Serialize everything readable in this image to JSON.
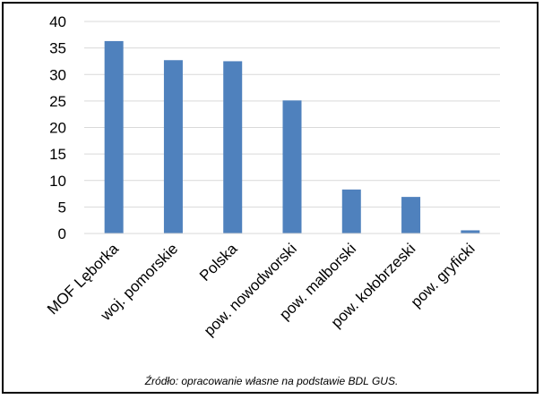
{
  "chart_data": {
    "type": "bar",
    "categories": [
      "MOF Lęborka",
      "woj. pomorskie",
      "Polska",
      "pow. nowodworski",
      "pow. malborski",
      "pow. kołobrzeski",
      "pow. gryficki"
    ],
    "values": [
      36.3,
      32.7,
      32.5,
      25.1,
      8.3,
      6.9,
      0.6
    ],
    "ylim": [
      0,
      40
    ],
    "yticks": [
      0,
      5,
      10,
      15,
      20,
      25,
      30,
      35,
      40
    ],
    "grid": true,
    "bar_color": "#4f81bd",
    "grid_color": "#d9d9d9"
  },
  "source_note": "Źródło: opracowanie własne na podstawie BDL GUS."
}
